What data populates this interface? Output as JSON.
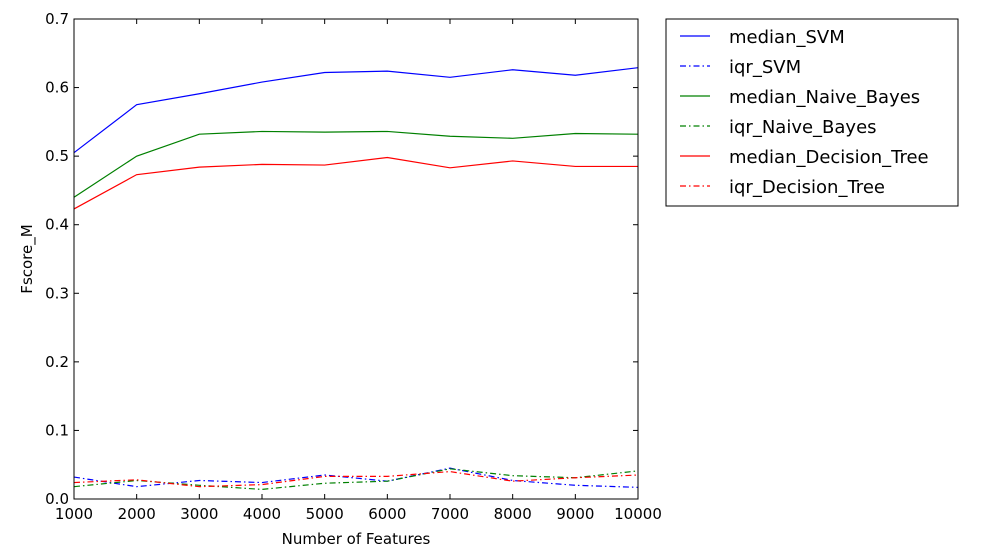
{
  "chart_data": {
    "type": "line",
    "title": "",
    "xlabel": "Number of Features",
    "ylabel": "Fscore_M",
    "xlim": [
      1000,
      10000
    ],
    "ylim": [
      0.0,
      0.7
    ],
    "x": [
      1000,
      2000,
      3000,
      4000,
      5000,
      6000,
      7000,
      8000,
      9000,
      10000
    ],
    "x_ticks": [
      "1000",
      "2000",
      "3000",
      "4000",
      "5000",
      "6000",
      "7000",
      "8000",
      "9000",
      "10000"
    ],
    "y_ticks": [
      {
        "value": 0.0,
        "label": "0.0"
      },
      {
        "value": 0.1,
        "label": "0.1"
      },
      {
        "value": 0.2,
        "label": "0.2"
      },
      {
        "value": 0.3,
        "label": "0.3"
      },
      {
        "value": 0.4,
        "label": "0.4"
      },
      {
        "value": 0.5,
        "label": "0.5"
      },
      {
        "value": 0.6,
        "label": "0.6"
      },
      {
        "value": 0.7,
        "label": "0.7"
      }
    ],
    "grid": false,
    "legend_position": "outside-top-right",
    "series": [
      {
        "name": "median_SVM",
        "color": "#0000ff",
        "style": "solid",
        "values": [
          0.505,
          0.575,
          0.591,
          0.608,
          0.622,
          0.624,
          0.615,
          0.626,
          0.618,
          0.629
        ]
      },
      {
        "name": "iqr_SVM",
        "color": "#0000ff",
        "style": "dashdot",
        "values": [
          0.032,
          0.018,
          0.027,
          0.024,
          0.035,
          0.026,
          0.045,
          0.027,
          0.02,
          0.017
        ]
      },
      {
        "name": "median_Naive_Bayes",
        "color": "#008000",
        "style": "solid",
        "values": [
          0.44,
          0.5,
          0.532,
          0.536,
          0.535,
          0.536,
          0.529,
          0.526,
          0.533,
          0.532
        ]
      },
      {
        "name": "iqr_Naive_Bayes",
        "color": "#008000",
        "style": "dashdot",
        "values": [
          0.018,
          0.027,
          0.02,
          0.014,
          0.023,
          0.026,
          0.044,
          0.034,
          0.031,
          0.041
        ]
      },
      {
        "name": "median_Decision_Tree",
        "color": "#ff0000",
        "style": "solid",
        "values": [
          0.423,
          0.473,
          0.484,
          0.488,
          0.487,
          0.498,
          0.483,
          0.493,
          0.485,
          0.485
        ]
      },
      {
        "name": "iqr_Decision_Tree",
        "color": "#ff0000",
        "style": "dashdot",
        "values": [
          0.024,
          0.028,
          0.018,
          0.021,
          0.033,
          0.033,
          0.04,
          0.026,
          0.031,
          0.035
        ]
      }
    ]
  }
}
